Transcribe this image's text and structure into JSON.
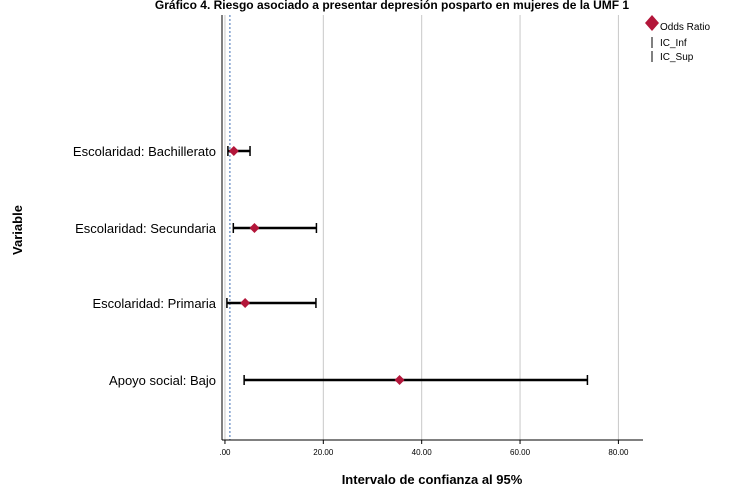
{
  "chart_data": {
    "type": "forest",
    "title": "Gráfico 4. Riesgo asociado a presentar depresión posparto en mujeres de la UMF 1",
    "xlabel": "Intervalo de confianza al 95%",
    "ylabel": "Variable",
    "xlim": [
      -0.6,
      85
    ],
    "xticks": [
      0,
      20,
      40,
      60,
      80
    ],
    "xtick_labels": [
      ".00",
      "20.00",
      "40.00",
      "60.00",
      "80.00"
    ],
    "reference_line": 1,
    "grid": "vertical",
    "legend_position": "top-right",
    "legend": [
      "Odds Ratio",
      "IC_Inf",
      "IC_Sup"
    ],
    "colors": {
      "odds_ratio": "#b3163a",
      "interval": "#000000",
      "reference": "#7c9ccc",
      "grid": "#c8c8c8"
    },
    "categories": [
      "Escolaridad: Bachillerato",
      "Escolaridad: Secundaria",
      "Escolaridad: Primaria",
      "Apoyo social: Bajo"
    ],
    "series": [
      {
        "name": "Odds Ratio",
        "values": [
          1.8,
          6.0,
          4.1,
          35.5
        ]
      },
      {
        "name": "IC_Inf",
        "values": [
          0.6,
          1.7,
          0.4,
          3.9
        ]
      },
      {
        "name": "IC_Sup",
        "values": [
          5.1,
          18.6,
          18.5,
          73.7
        ]
      }
    ]
  }
}
